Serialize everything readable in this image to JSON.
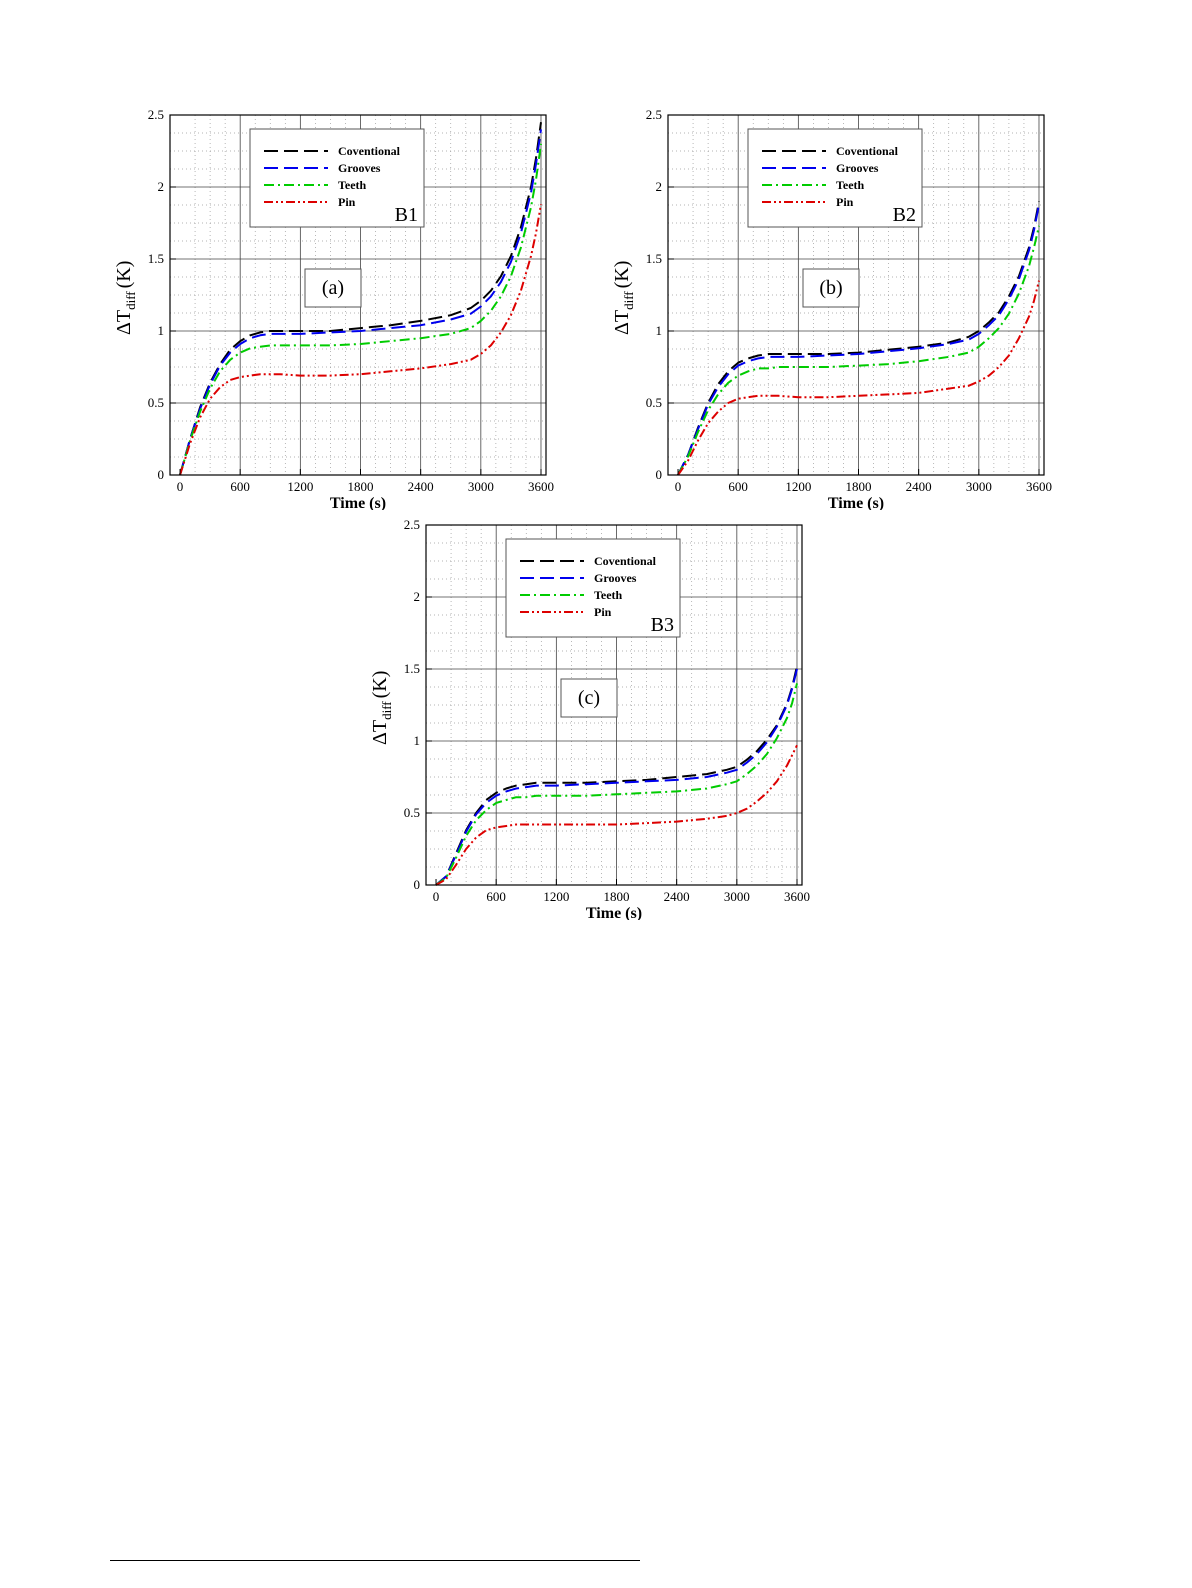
{
  "chart_data": [
    {
      "type": "line",
      "panel_label": "(a)",
      "case_label": "B1",
      "xlabel": "Time (s)",
      "ylabel_main": "ΔT",
      "ylabel_sub": "diff",
      "ylabel_unit": "(K)",
      "xlim": [
        -100,
        3650
      ],
      "ylim": [
        0,
        2.5
      ],
      "xticks": [
        "0",
        "600",
        "1200",
        "1800",
        "2400",
        "3000",
        "3600"
      ],
      "yticks": [
        "0",
        "0.5",
        "1",
        "1.5",
        "2",
        "2.5"
      ],
      "grid": true,
      "legend_position": "top-center",
      "series": [
        {
          "name": "Coventional",
          "color": "#000000",
          "dash": "dashed",
          "x": [
            0,
            100,
            200,
            300,
            400,
            500,
            600,
            700,
            800,
            900,
            1000,
            1200,
            1500,
            1800,
            2100,
            2400,
            2700,
            2900,
            3000,
            3100,
            3200,
            3300,
            3400,
            3500,
            3550,
            3600
          ],
          "y": [
            0,
            0.25,
            0.47,
            0.64,
            0.77,
            0.87,
            0.93,
            0.97,
            0.99,
            1.0,
            1.0,
            1.0,
            1.0,
            1.02,
            1.04,
            1.07,
            1.11,
            1.16,
            1.21,
            1.28,
            1.38,
            1.52,
            1.72,
            2.0,
            2.2,
            2.45
          ]
        },
        {
          "name": "Grooves",
          "color": "#0000ee",
          "dash": "dashed",
          "x": [
            0,
            100,
            200,
            300,
            400,
            500,
            600,
            700,
            800,
            900,
            1000,
            1200,
            1500,
            1800,
            2100,
            2400,
            2700,
            2900,
            3000,
            3100,
            3200,
            3300,
            3400,
            3500,
            3550,
            3600
          ],
          "y": [
            0,
            0.25,
            0.46,
            0.63,
            0.76,
            0.85,
            0.91,
            0.95,
            0.97,
            0.98,
            0.98,
            0.98,
            0.99,
            1.0,
            1.02,
            1.04,
            1.08,
            1.12,
            1.17,
            1.24,
            1.34,
            1.48,
            1.68,
            1.96,
            2.16,
            2.4
          ]
        },
        {
          "name": "Teeth",
          "color": "#00cc00",
          "dash": "dashdot",
          "x": [
            0,
            100,
            200,
            300,
            400,
            500,
            600,
            700,
            800,
            900,
            1000,
            1200,
            1500,
            1800,
            2100,
            2400,
            2700,
            2900,
            3000,
            3100,
            3200,
            3300,
            3400,
            3500,
            3550,
            3600
          ],
          "y": [
            0,
            0.24,
            0.44,
            0.6,
            0.72,
            0.8,
            0.85,
            0.88,
            0.89,
            0.9,
            0.9,
            0.9,
            0.9,
            0.91,
            0.93,
            0.95,
            0.98,
            1.02,
            1.07,
            1.14,
            1.24,
            1.38,
            1.58,
            1.86,
            2.05,
            2.3
          ]
        },
        {
          "name": "Pin",
          "color": "#dd0000",
          "dash": "dashdotdot",
          "x": [
            0,
            100,
            200,
            300,
            400,
            500,
            600,
            700,
            800,
            900,
            1000,
            1200,
            1500,
            1800,
            2100,
            2400,
            2700,
            2900,
            3000,
            3100,
            3200,
            3300,
            3400,
            3500,
            3550,
            3600
          ],
          "y": [
            0,
            0.22,
            0.4,
            0.53,
            0.61,
            0.66,
            0.68,
            0.69,
            0.7,
            0.7,
            0.7,
            0.69,
            0.69,
            0.7,
            0.72,
            0.74,
            0.77,
            0.8,
            0.84,
            0.9,
            0.99,
            1.11,
            1.28,
            1.52,
            1.68,
            1.88
          ]
        }
      ]
    },
    {
      "type": "line",
      "panel_label": "(b)",
      "case_label": "B2",
      "xlabel": "Time (s)",
      "ylabel_main": "ΔT",
      "ylabel_sub": "diff",
      "ylabel_unit": "(K)",
      "xlim": [
        -100,
        3650
      ],
      "ylim": [
        0,
        2.5
      ],
      "xticks": [
        "0",
        "600",
        "1200",
        "1800",
        "2400",
        "3000",
        "3600"
      ],
      "yticks": [
        "0",
        "0.5",
        "1",
        "1.5",
        "2",
        "2.5"
      ],
      "grid": true,
      "legend_position": "top-center",
      "series": [
        {
          "name": "Coventional",
          "color": "#000000",
          "dash": "dashed",
          "x": [
            0,
            100,
            200,
            300,
            400,
            500,
            600,
            700,
            800,
            900,
            1000,
            1200,
            1500,
            1800,
            2100,
            2400,
            2700,
            2900,
            3000,
            3100,
            3200,
            3300,
            3400,
            3500,
            3550,
            3600
          ],
          "y": [
            0,
            0.14,
            0.33,
            0.5,
            0.63,
            0.72,
            0.78,
            0.81,
            0.83,
            0.84,
            0.84,
            0.84,
            0.84,
            0.85,
            0.87,
            0.89,
            0.92,
            0.96,
            1.0,
            1.06,
            1.13,
            1.24,
            1.38,
            1.58,
            1.72,
            1.9
          ]
        },
        {
          "name": "Grooves",
          "color": "#0000ee",
          "dash": "dashed",
          "x": [
            0,
            100,
            200,
            300,
            400,
            500,
            600,
            700,
            800,
            900,
            1000,
            1200,
            1500,
            1800,
            2100,
            2400,
            2700,
            2900,
            3000,
            3100,
            3200,
            3300,
            3400,
            3500,
            3550,
            3600
          ],
          "y": [
            0,
            0.14,
            0.32,
            0.49,
            0.61,
            0.7,
            0.76,
            0.79,
            0.81,
            0.82,
            0.82,
            0.82,
            0.83,
            0.84,
            0.86,
            0.88,
            0.91,
            0.94,
            0.98,
            1.04,
            1.11,
            1.22,
            1.36,
            1.56,
            1.7,
            1.88
          ]
        },
        {
          "name": "Teeth",
          "color": "#00cc00",
          "dash": "dashdot",
          "x": [
            0,
            100,
            200,
            300,
            400,
            500,
            600,
            700,
            800,
            900,
            1000,
            1200,
            1500,
            1800,
            2100,
            2400,
            2700,
            2900,
            3000,
            3100,
            3200,
            3300,
            3400,
            3500,
            3550,
            3600
          ],
          "y": [
            0,
            0.13,
            0.3,
            0.45,
            0.56,
            0.64,
            0.69,
            0.72,
            0.74,
            0.74,
            0.75,
            0.75,
            0.75,
            0.76,
            0.77,
            0.79,
            0.82,
            0.85,
            0.89,
            0.95,
            1.02,
            1.12,
            1.26,
            1.45,
            1.58,
            1.73
          ]
        },
        {
          "name": "Pin",
          "color": "#dd0000",
          "dash": "dashdotdot",
          "x": [
            0,
            100,
            200,
            300,
            400,
            500,
            600,
            700,
            800,
            900,
            1000,
            1200,
            1500,
            1800,
            2100,
            2400,
            2700,
            2900,
            3000,
            3100,
            3200,
            3300,
            3400,
            3500,
            3550,
            3600
          ],
          "y": [
            0,
            0.1,
            0.24,
            0.36,
            0.44,
            0.5,
            0.53,
            0.54,
            0.55,
            0.55,
            0.55,
            0.54,
            0.54,
            0.55,
            0.56,
            0.57,
            0.6,
            0.62,
            0.65,
            0.69,
            0.75,
            0.83,
            0.95,
            1.1,
            1.21,
            1.35
          ]
        }
      ]
    },
    {
      "type": "line",
      "panel_label": "(c)",
      "case_label": "B3",
      "xlabel": "Time (s)",
      "ylabel_main": "ΔT",
      "ylabel_sub": "diff",
      "ylabel_unit": "(K)",
      "xlim": [
        -100,
        3650
      ],
      "ylim": [
        0,
        2.5
      ],
      "xticks": [
        "0",
        "600",
        "1200",
        "1800",
        "2400",
        "3000",
        "3600"
      ],
      "yticks": [
        "0",
        "0.5",
        "1",
        "1.5",
        "2",
        "2.5"
      ],
      "grid": true,
      "legend_position": "top-center",
      "series": [
        {
          "name": "Coventional",
          "color": "#000000",
          "dash": "dashed",
          "x": [
            0,
            100,
            200,
            300,
            400,
            500,
            600,
            700,
            800,
            900,
            1000,
            1200,
            1500,
            1800,
            2100,
            2400,
            2700,
            2900,
            3000,
            3100,
            3200,
            3300,
            3400,
            3500,
            3550,
            3600
          ],
          "y": [
            0,
            0.06,
            0.22,
            0.38,
            0.5,
            0.59,
            0.64,
            0.67,
            0.69,
            0.7,
            0.71,
            0.71,
            0.71,
            0.72,
            0.73,
            0.75,
            0.77,
            0.8,
            0.82,
            0.87,
            0.93,
            1.01,
            1.11,
            1.26,
            1.37,
            1.52
          ]
        },
        {
          "name": "Grooves",
          "color": "#0000ee",
          "dash": "dashed",
          "x": [
            0,
            100,
            200,
            300,
            400,
            500,
            600,
            700,
            800,
            900,
            1000,
            1200,
            1500,
            1800,
            2100,
            2400,
            2700,
            2900,
            3000,
            3100,
            3200,
            3300,
            3400,
            3500,
            3550,
            3600
          ],
          "y": [
            0,
            0.06,
            0.21,
            0.37,
            0.49,
            0.57,
            0.62,
            0.65,
            0.67,
            0.68,
            0.69,
            0.69,
            0.7,
            0.71,
            0.72,
            0.73,
            0.75,
            0.78,
            0.8,
            0.85,
            0.91,
            0.99,
            1.1,
            1.25,
            1.36,
            1.5
          ]
        },
        {
          "name": "Teeth",
          "color": "#00cc00",
          "dash": "dashdot",
          "x": [
            0,
            100,
            200,
            300,
            400,
            500,
            600,
            700,
            800,
            900,
            1000,
            1200,
            1500,
            1800,
            2100,
            2400,
            2700,
            2900,
            3000,
            3100,
            3200,
            3300,
            3400,
            3500,
            3550,
            3600
          ],
          "y": [
            0,
            0.05,
            0.19,
            0.34,
            0.45,
            0.52,
            0.57,
            0.59,
            0.61,
            0.61,
            0.62,
            0.62,
            0.62,
            0.63,
            0.64,
            0.65,
            0.67,
            0.7,
            0.72,
            0.77,
            0.83,
            0.91,
            1.02,
            1.16,
            1.26,
            1.4
          ]
        },
        {
          "name": "Pin",
          "color": "#dd0000",
          "dash": "dashdotdot",
          "x": [
            0,
            100,
            200,
            300,
            400,
            500,
            600,
            700,
            800,
            900,
            1000,
            1200,
            1500,
            1800,
            2100,
            2400,
            2700,
            2900,
            3000,
            3100,
            3200,
            3300,
            3400,
            3500,
            3550,
            3600
          ],
          "y": [
            0,
            0.04,
            0.14,
            0.25,
            0.33,
            0.38,
            0.4,
            0.41,
            0.42,
            0.42,
            0.42,
            0.42,
            0.42,
            0.42,
            0.43,
            0.44,
            0.46,
            0.48,
            0.5,
            0.53,
            0.58,
            0.64,
            0.72,
            0.83,
            0.9,
            0.97
          ]
        }
      ]
    }
  ]
}
